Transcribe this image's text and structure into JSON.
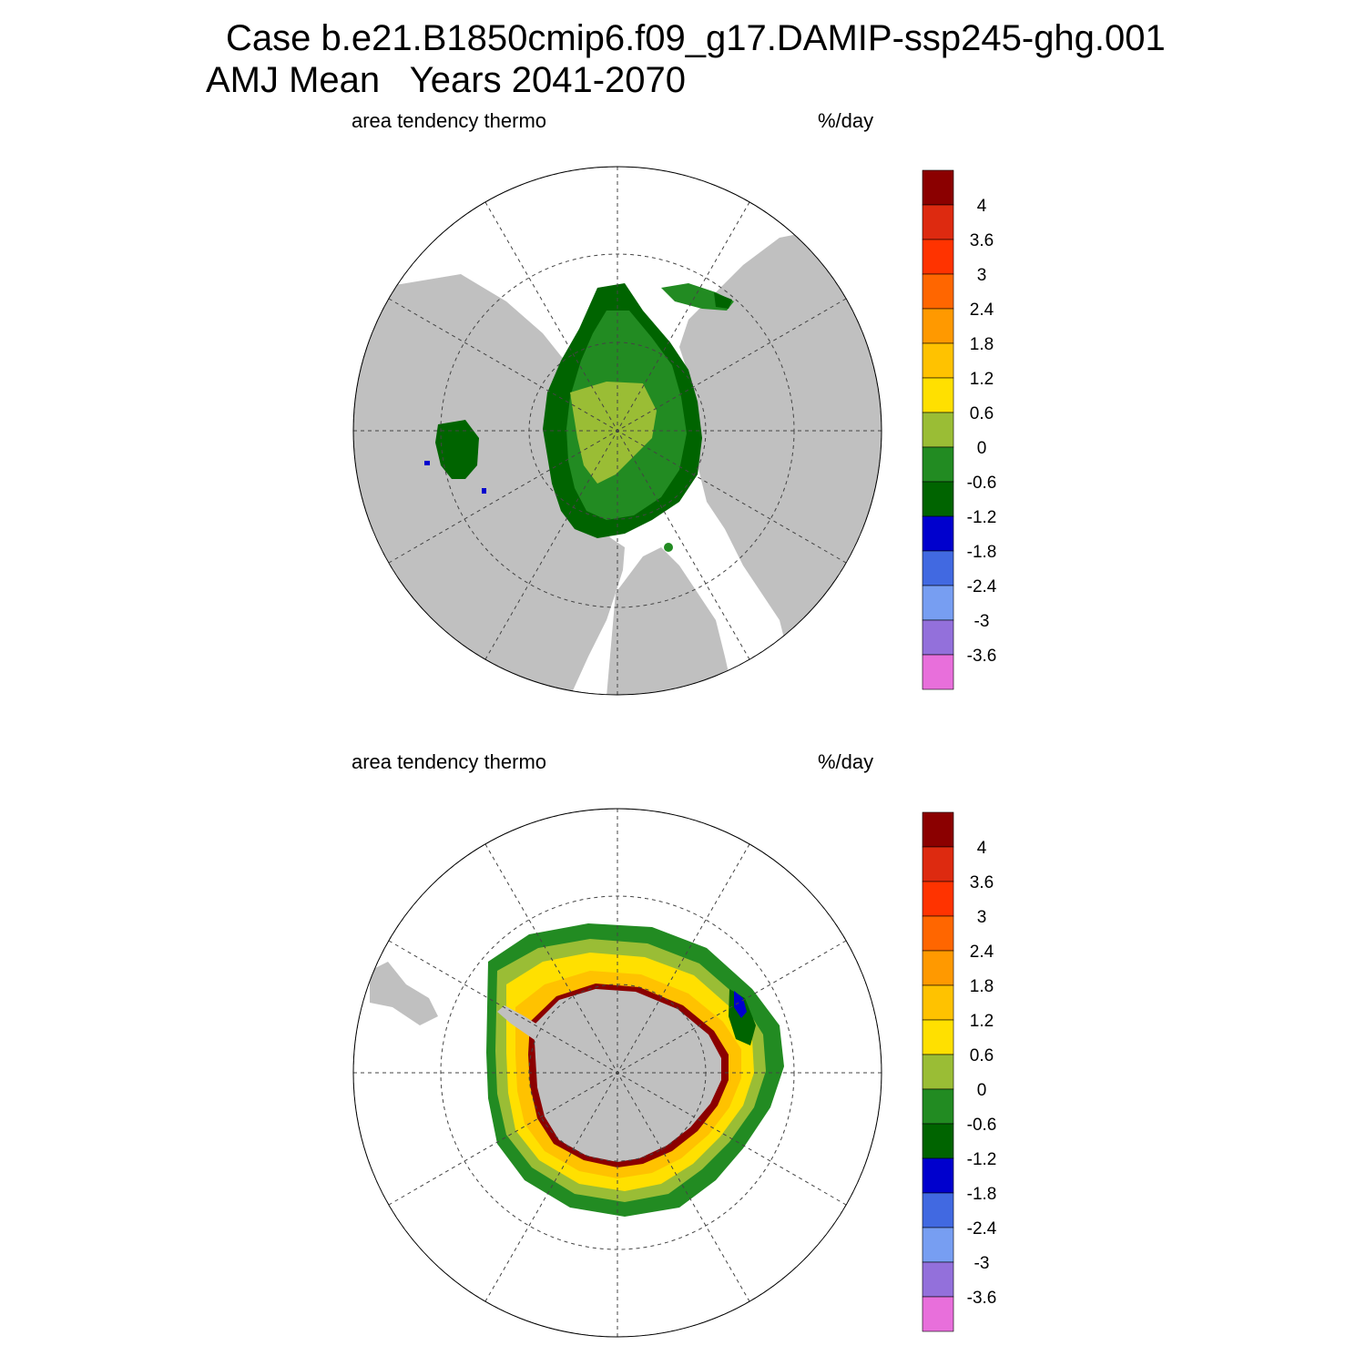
{
  "title": {
    "line1": "Case b.e21.B1850cmip6.f09_g17.DAMIP-ssp245-ghg.001",
    "line2": "AMJ Mean   Years 2041-2070"
  },
  "colors": {
    "land": "#c0c0c0",
    "ocean_no_ice": "#ffffff",
    "contours": [
      "#e86fdb",
      "#9370db",
      "#779ef2",
      "#4169e1",
      "#0000cd",
      "#006400",
      "#228b22",
      "#9abd35",
      "#ffe000",
      "#ffc200",
      "#ff9900",
      "#ff6600",
      "#ff3300",
      "#dd2a10",
      "#8b0000"
    ]
  },
  "colorbar": {
    "levels": [
      "4",
      "3.6",
      "3",
      "2.4",
      "1.8",
      "1.2",
      "0.6",
      "0",
      "-0.6",
      "-1.2",
      "-1.8",
      "-2.4",
      "-3",
      "-3.6"
    ]
  },
  "panels": [
    {
      "id": "north",
      "left_label": "area tendency thermo",
      "right_label": "%/day",
      "projection": "north-polar-stereographic"
    },
    {
      "id": "south",
      "left_label": "area tendency thermo",
      "right_label": "%/day",
      "projection": "south-polar-stereographic"
    }
  ]
}
